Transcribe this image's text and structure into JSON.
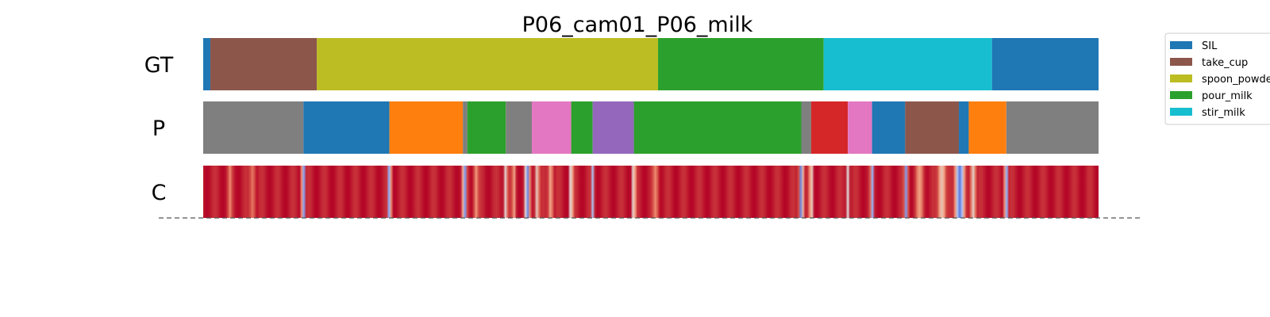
{
  "chart_data": {
    "type": "segmentation",
    "title": "P06_cam01_P06_milk",
    "x_range": [
      0,
      100
    ],
    "colors": {
      "SIL": "#1f77b4",
      "take_cup": "#8c564b",
      "spoon_powder": "#bcbd22",
      "pour_milk": "#2ca02c",
      "stir_milk": "#17becf",
      "c_gray": "#7f7f7f",
      "c_orange": "#ff7f0e",
      "c_pink": "#e377c2",
      "c_purple": "#9467bd",
      "c_red": "#d62728"
    },
    "legend": [
      {
        "label": "SIL",
        "color": "#1f77b4"
      },
      {
        "label": "take_cup",
        "color": "#8c564b"
      },
      {
        "label": "spoon_powder",
        "color": "#bcbd22"
      },
      {
        "label": "pour_milk",
        "color": "#2ca02c"
      },
      {
        "label": "stir_milk",
        "color": "#17becf"
      }
    ],
    "rows": [
      {
        "label": "GT",
        "segments": [
          {
            "start": 0.0,
            "end": 0.8,
            "class": "SIL"
          },
          {
            "start": 0.8,
            "end": 12.7,
            "class": "take_cup"
          },
          {
            "start": 12.7,
            "end": 50.8,
            "class": "spoon_powder"
          },
          {
            "start": 50.8,
            "end": 69.3,
            "class": "pour_milk"
          },
          {
            "start": 69.3,
            "end": 88.1,
            "class": "stir_milk"
          },
          {
            "start": 88.1,
            "end": 100.0,
            "class": "SIL"
          }
        ]
      },
      {
        "label": "P",
        "segments": [
          {
            "start": 0.0,
            "end": 11.2,
            "class": "c_gray"
          },
          {
            "start": 11.2,
            "end": 20.8,
            "class": "SIL"
          },
          {
            "start": 20.8,
            "end": 29.0,
            "class": "c_orange"
          },
          {
            "start": 29.0,
            "end": 29.5,
            "class": "c_gray"
          },
          {
            "start": 29.5,
            "end": 33.8,
            "class": "pour_milk"
          },
          {
            "start": 33.8,
            "end": 36.7,
            "class": "c_gray"
          },
          {
            "start": 36.7,
            "end": 41.1,
            "class": "c_pink"
          },
          {
            "start": 41.1,
            "end": 43.5,
            "class": "pour_milk"
          },
          {
            "start": 43.5,
            "end": 48.1,
            "class": "c_purple"
          },
          {
            "start": 48.1,
            "end": 66.8,
            "class": "pour_milk"
          },
          {
            "start": 66.8,
            "end": 67.9,
            "class": "c_gray"
          },
          {
            "start": 67.9,
            "end": 72.0,
            "class": "c_red"
          },
          {
            "start": 72.0,
            "end": 74.7,
            "class": "c_pink"
          },
          {
            "start": 74.7,
            "end": 78.4,
            "class": "SIL"
          },
          {
            "start": 78.4,
            "end": 84.4,
            "class": "take_cup"
          },
          {
            "start": 84.4,
            "end": 85.5,
            "class": "SIL"
          },
          {
            "start": 85.5,
            "end": 89.7,
            "class": "c_orange"
          },
          {
            "start": 89.7,
            "end": 100.0,
            "class": "c_gray"
          }
        ]
      },
      {
        "label": "C",
        "confidence_dips": [
          {
            "at": 3.0,
            "value": 0.78,
            "width": 0.5
          },
          {
            "at": 5.5,
            "value": 0.82,
            "width": 0.6
          },
          {
            "at": 11.2,
            "value": 0.15,
            "width": 0.35
          },
          {
            "at": 20.8,
            "value": 0.2,
            "width": 0.35
          },
          {
            "at": 29.2,
            "value": 0.15,
            "width": 0.4
          },
          {
            "at": 30.5,
            "value": 0.75,
            "width": 0.5
          },
          {
            "at": 33.8,
            "value": 0.5,
            "width": 0.35
          },
          {
            "at": 34.7,
            "value": 0.7,
            "width": 0.4
          },
          {
            "at": 36.2,
            "value": 0.12,
            "width": 0.5
          },
          {
            "at": 37.3,
            "value": 0.55,
            "width": 0.4
          },
          {
            "at": 38.8,
            "value": 0.7,
            "width": 0.5
          },
          {
            "at": 41.1,
            "value": 0.25,
            "width": 0.3
          },
          {
            "at": 43.5,
            "value": 0.35,
            "width": 0.3
          },
          {
            "at": 48.1,
            "value": 0.3,
            "width": 0.3
          },
          {
            "at": 50.5,
            "value": 0.78,
            "width": 0.6
          },
          {
            "at": 66.8,
            "value": 0.1,
            "width": 0.4
          },
          {
            "at": 67.9,
            "value": 0.35,
            "width": 0.3
          },
          {
            "at": 72.0,
            "value": 0.5,
            "width": 0.3
          },
          {
            "at": 74.7,
            "value": 0.2,
            "width": 0.3
          },
          {
            "at": 78.5,
            "value": 0.2,
            "width": 0.35
          },
          {
            "at": 80.0,
            "value": 0.72,
            "width": 0.8
          },
          {
            "at": 82.5,
            "value": 0.6,
            "width": 0.8
          },
          {
            "at": 84.5,
            "value": 0.1,
            "width": 0.9
          },
          {
            "at": 86.0,
            "value": 0.55,
            "width": 0.5
          },
          {
            "at": 89.7,
            "value": 0.2,
            "width": 0.35
          }
        ]
      }
    ]
  }
}
